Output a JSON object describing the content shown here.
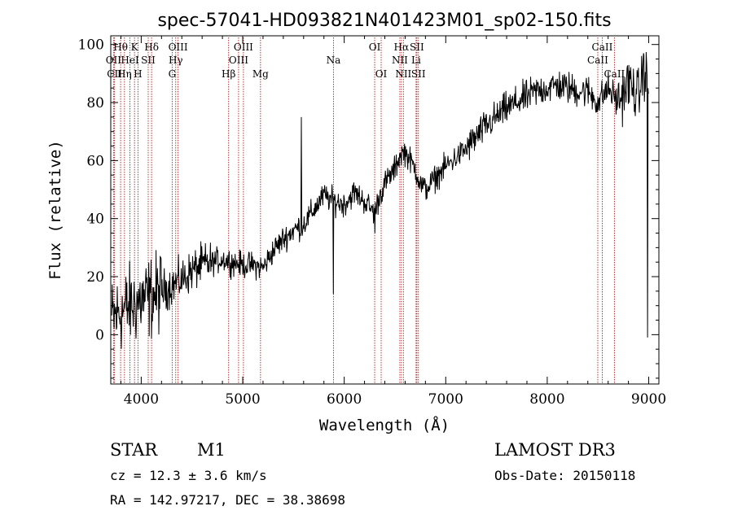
{
  "chart_data": {
    "type": "line",
    "title": "spec-57041-HD093821N401423M01_sp02-150.fits",
    "xlabel": "Wavelength (Å)",
    "ylabel": "Flux (relative)",
    "xlim": [
      3700,
      9100
    ],
    "ylim": [
      -17,
      103
    ],
    "x_ticks": [
      4000,
      5000,
      6000,
      7000,
      8000,
      9000
    ],
    "y_ticks": [
      0,
      20,
      40,
      60,
      80,
      100
    ],
    "series": [
      {
        "name": "flux",
        "anchors": [
          [
            3700,
            5
          ],
          [
            3800,
            8
          ],
          [
            3900,
            10
          ],
          [
            4000,
            12
          ],
          [
            4100,
            13
          ],
          [
            4200,
            15
          ],
          [
            4300,
            17
          ],
          [
            4400,
            19
          ],
          [
            4500,
            22
          ],
          [
            4600,
            24
          ],
          [
            4700,
            25
          ],
          [
            4800,
            26
          ],
          [
            4900,
            25
          ],
          [
            5000,
            24
          ],
          [
            5100,
            24
          ],
          [
            5200,
            23
          ],
          [
            5300,
            29
          ],
          [
            5400,
            33
          ],
          [
            5500,
            36
          ],
          [
            5600,
            38
          ],
          [
            5700,
            43
          ],
          [
            5800,
            48
          ],
          [
            5900,
            46
          ],
          [
            6000,
            45
          ],
          [
            6100,
            49
          ],
          [
            6200,
            46
          ],
          [
            6300,
            42
          ],
          [
            6350,
            48
          ],
          [
            6400,
            52
          ],
          [
            6500,
            57
          ],
          [
            6550,
            62
          ],
          [
            6600,
            63
          ],
          [
            6700,
            57
          ],
          [
            6750,
            52
          ],
          [
            6800,
            50
          ],
          [
            6900,
            54
          ],
          [
            7000,
            58
          ],
          [
            7100,
            61
          ],
          [
            7200,
            64
          ],
          [
            7300,
            68
          ],
          [
            7400,
            72
          ],
          [
            7500,
            75
          ],
          [
            7600,
            78
          ],
          [
            7700,
            80
          ],
          [
            7800,
            82
          ],
          [
            7900,
            84
          ],
          [
            8000,
            85
          ],
          [
            8100,
            86
          ],
          [
            8200,
            85
          ],
          [
            8300,
            84
          ],
          [
            8400,
            84
          ],
          [
            8500,
            80
          ],
          [
            8600,
            85
          ],
          [
            8700,
            80
          ],
          [
            8800,
            87
          ],
          [
            8900,
            82
          ],
          [
            8950,
            92
          ],
          [
            9000,
            85
          ]
        ],
        "features": [
          {
            "x": 5577,
            "y": 75
          },
          {
            "x": 5892,
            "y": 14
          },
          {
            "x": 6300,
            "y": 35
          },
          {
            "x": 8990,
            "y": -1
          }
        ]
      }
    ],
    "lines": [
      {
        "name": "OII",
        "x": 3727,
        "row": 2
      },
      {
        "name": "CII",
        "x": 3737,
        "row": 3
      },
      {
        "name": "Hθ",
        "x": 3797,
        "row": 1
      },
      {
        "name": "Hη",
        "x": 3835,
        "row": 3
      },
      {
        "name": "HeI",
        "x": 3889,
        "row": 2
      },
      {
        "name": "K",
        "x": 3934,
        "row": 1
      },
      {
        "name": "H",
        "x": 3968,
        "row": 3
      },
      {
        "name": "SII",
        "x": 4069,
        "row": 2
      },
      {
        "name": "Hδ",
        "x": 4102,
        "row": 1
      },
      {
        "name": "G",
        "x": 4305,
        "row": 3
      },
      {
        "name": "Hγ",
        "x": 4340,
        "row": 2
      },
      {
        "name": "OIII",
        "x": 4363,
        "row": 1
      },
      {
        "name": "Hβ",
        "x": 4861,
        "row": 3
      },
      {
        "name": "OIII",
        "x": 4959,
        "row": 2
      },
      {
        "name": "OIII",
        "x": 5007,
        "row": 1
      },
      {
        "name": "Mg",
        "x": 5175,
        "row": 3
      },
      {
        "name": "Na",
        "x": 5894,
        "row": 2
      },
      {
        "name": "OI",
        "x": 6300,
        "row": 1
      },
      {
        "name": "OI",
        "x": 6364,
        "row": 3
      },
      {
        "name": "NII",
        "x": 6548,
        "row": 2
      },
      {
        "name": "Hα",
        "x": 6563,
        "row": 1
      },
      {
        "name": "NII",
        "x": 6583,
        "row": 3
      },
      {
        "name": "Li",
        "x": 6708,
        "row": 2
      },
      {
        "name": "SII",
        "x": 6716,
        "row": 1
      },
      {
        "name": "SII",
        "x": 6731,
        "row": 3
      },
      {
        "name": "CaII",
        "x": 8498,
        "row": 2
      },
      {
        "name": "CaII",
        "x": 8542,
        "row": 1
      },
      {
        "name": "CaII",
        "x": 8662,
        "row": 3
      }
    ]
  },
  "info": {
    "object_class": "STAR",
    "subclass": "M1",
    "survey": "LAMOST DR3",
    "cz": "cz = 12.3 ± 3.6 km/s",
    "obs_date": "Obs-Date: 20150118",
    "coords": "RA = 142.97217, DEC =  38.38698"
  },
  "colors": {
    "spectrum": "#000000",
    "line_marker": "#b22222",
    "background": "#ffffff"
  }
}
